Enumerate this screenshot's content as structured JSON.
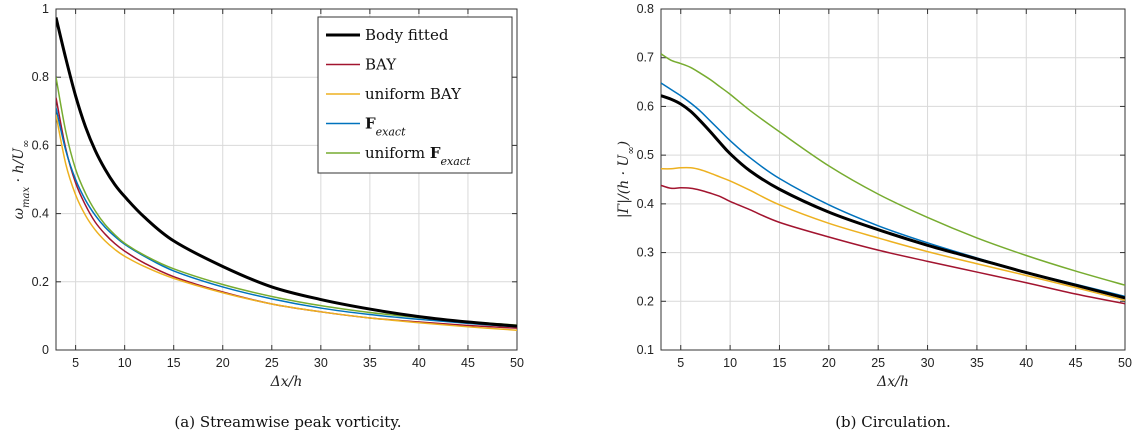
{
  "chart_data": [
    {
      "type": "line",
      "caption": "(a) Streamwise peak vorticity.",
      "xlabel": "Δx/h",
      "ylabel": "ω_max · h/U_∞",
      "xlim": [
        3,
        50
      ],
      "ylim": [
        0,
        1
      ],
      "xticks": [
        5,
        10,
        15,
        20,
        25,
        30,
        35,
        40,
        45,
        50
      ],
      "yticks": [
        0,
        0.2,
        0.4,
        0.6,
        0.8,
        1
      ],
      "ytick_labels": [
        "0",
        "0.2",
        "0.4",
        "0.6",
        "0.8",
        "1"
      ],
      "grid": true,
      "legend": "top-right",
      "x": [
        3,
        4,
        5,
        6,
        7,
        8,
        9,
        10,
        12,
        15,
        20,
        25,
        30,
        35,
        40,
        45,
        50
      ],
      "series": [
        {
          "name": "Body fitted",
          "color": "#000000",
          "width": 3,
          "values": [
            0.975,
            0.855,
            0.745,
            0.655,
            0.585,
            0.53,
            0.485,
            0.45,
            0.39,
            0.32,
            0.245,
            0.185,
            0.148,
            0.12,
            0.098,
            0.082,
            0.07
          ]
        },
        {
          "name": "BAY",
          "color": "#a2142f",
          "width": 1.5,
          "values": [
            0.74,
            0.59,
            0.49,
            0.425,
            0.375,
            0.34,
            0.312,
            0.29,
            0.255,
            0.215,
            0.17,
            0.135,
            0.112,
            0.094,
            0.082,
            0.072,
            0.064
          ]
        },
        {
          "name": "uniform BAY",
          "color": "#edb120",
          "width": 1.5,
          "values": [
            0.69,
            0.545,
            0.455,
            0.395,
            0.352,
            0.32,
            0.295,
            0.275,
            0.245,
            0.21,
            0.168,
            0.135,
            0.112,
            0.094,
            0.08,
            0.068,
            0.058
          ]
        },
        {
          "name": "F_exact",
          "color": "#0072bd",
          "width": 1.5,
          "values": [
            0.71,
            0.585,
            0.5,
            0.44,
            0.395,
            0.36,
            0.333,
            0.31,
            0.275,
            0.232,
            0.185,
            0.15,
            0.123,
            0.104,
            0.09,
            0.078,
            0.068
          ]
        },
        {
          "name": "uniform F_exact",
          "color": "#77ac30",
          "width": 1.5,
          "values": [
            0.8,
            0.64,
            0.53,
            0.46,
            0.408,
            0.368,
            0.338,
            0.313,
            0.278,
            0.238,
            0.192,
            0.157,
            0.13,
            0.11,
            0.095,
            0.083,
            0.073
          ]
        }
      ]
    },
    {
      "type": "line",
      "caption": "(b) Circulation.",
      "xlabel": "Δx/h",
      "ylabel": "|Γ|/(h · U_∞)",
      "xlim": [
        3,
        50
      ],
      "ylim": [
        0.1,
        0.8
      ],
      "xticks": [
        5,
        10,
        15,
        20,
        25,
        30,
        35,
        40,
        45,
        50
      ],
      "yticks": [
        0.1,
        0.2,
        0.3,
        0.4,
        0.5,
        0.6,
        0.7,
        0.8
      ],
      "ytick_labels": [
        "0.1",
        "0.2",
        "0.3",
        "0.4",
        "0.5",
        "0.6",
        "0.7",
        "0.8"
      ],
      "grid": true,
      "x": [
        3,
        4,
        5,
        6,
        7,
        8,
        9,
        10,
        12,
        15,
        20,
        25,
        30,
        35,
        40,
        45,
        50
      ],
      "series": [
        {
          "name": "Body fitted",
          "color": "#000000",
          "width": 3,
          "values": [
            0.622,
            0.615,
            0.605,
            0.59,
            0.57,
            0.548,
            0.525,
            0.503,
            0.468,
            0.43,
            0.383,
            0.347,
            0.315,
            0.287,
            0.259,
            0.233,
            0.207
          ]
        },
        {
          "name": "BAY",
          "color": "#a2142f",
          "width": 1.5,
          "values": [
            0.438,
            0.432,
            0.433,
            0.432,
            0.428,
            0.422,
            0.415,
            0.405,
            0.388,
            0.362,
            0.332,
            0.305,
            0.282,
            0.26,
            0.238,
            0.215,
            0.195
          ]
        },
        {
          "name": "uniform BAY",
          "color": "#edb120",
          "width": 1.5,
          "values": [
            0.472,
            0.472,
            0.474,
            0.474,
            0.47,
            0.463,
            0.455,
            0.447,
            0.428,
            0.398,
            0.36,
            0.33,
            0.302,
            0.277,
            0.253,
            0.228,
            0.202
          ]
        },
        {
          "name": "F_exact",
          "color": "#0072bd",
          "width": 1.5,
          "values": [
            0.648,
            0.635,
            0.622,
            0.607,
            0.59,
            0.57,
            0.55,
            0.53,
            0.495,
            0.452,
            0.398,
            0.355,
            0.32,
            0.289,
            0.26,
            0.235,
            0.21
          ]
        },
        {
          "name": "uniform F_exact",
          "color": "#77ac30",
          "width": 1.5,
          "values": [
            0.708,
            0.695,
            0.688,
            0.68,
            0.668,
            0.655,
            0.64,
            0.625,
            0.592,
            0.548,
            0.478,
            0.42,
            0.372,
            0.33,
            0.294,
            0.262,
            0.233
          ]
        }
      ]
    }
  ]
}
